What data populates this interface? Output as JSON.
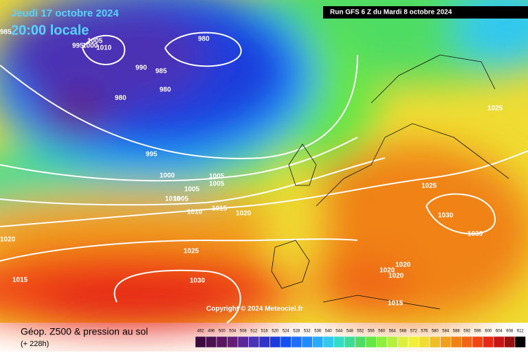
{
  "header": {
    "date": "Jeudi 17 octobre 2024",
    "time": "20:00 locale",
    "run": "Run GFS 6 Z du Mardi 8 octobre 2024"
  },
  "copyright": "Copyright © 2024 Meteociel.fr",
  "footer": {
    "title": "Géop. Z500 & pression au sol",
    "lead": "(+ 228h)"
  },
  "scale": {
    "labels": [
      492,
      496,
      500,
      504,
      508,
      512,
      516,
      520,
      524,
      528,
      532,
      536,
      540,
      544,
      548,
      552,
      556,
      560,
      564,
      568,
      572,
      576,
      580,
      584,
      588,
      592,
      596,
      600,
      604,
      608,
      612
    ],
    "colors": [
      "#3c0a3c",
      "#4b1050",
      "#5a1460",
      "#641e78",
      "#5a2896",
      "#4b32b4",
      "#3232c8",
      "#1e3cdc",
      "#1450f0",
      "#1e6eff",
      "#1e8cff",
      "#28aaff",
      "#32c8f0",
      "#32dcc8",
      "#3cdc96",
      "#50dc64",
      "#64e646",
      "#8cf03c",
      "#b4f03c",
      "#dcf03c",
      "#f0f03c",
      "#f0dc32",
      "#f0be28",
      "#f0a01e",
      "#f08214",
      "#f06414",
      "#f04614",
      "#e62814",
      "#c81414",
      "#961010",
      "#000000"
    ]
  },
  "isobars": [
    985,
    995,
    1000,
    1005,
    1010,
    980,
    990,
    985,
    980,
    980,
    995,
    1000,
    1005,
    1005,
    1005,
    1010,
    1005,
    1010,
    1015,
    1020,
    1025,
    1025,
    1030,
    1030,
    1020,
    1025,
    1015,
    1030,
    1020,
    1020,
    1020,
    1015
  ]
}
